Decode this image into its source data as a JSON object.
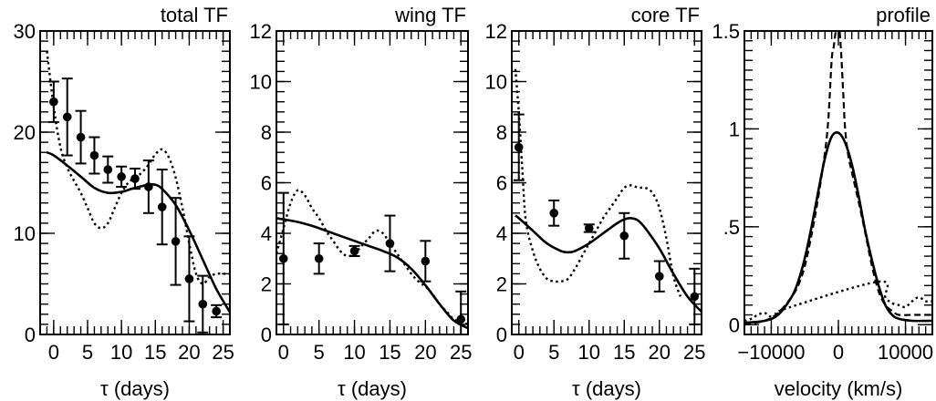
{
  "chart_data": [
    {
      "type": "line",
      "title": "total TF",
      "xlabel": "τ (days)",
      "ylabel": "",
      "xlim": [
        -2,
        26
      ],
      "ylim": [
        0,
        30
      ],
      "xticks": [
        0,
        5,
        10,
        15,
        20,
        25
      ],
      "yticks": [
        0,
        10,
        20,
        30
      ],
      "ytick_labels": [
        "0",
        "10",
        "20",
        "30"
      ],
      "points": [
        {
          "x": 0,
          "y": 23,
          "err": 2
        },
        {
          "x": 2,
          "y": 21.5,
          "err": 3.8
        },
        {
          "x": 4,
          "y": 19.5,
          "err": 2.6
        },
        {
          "x": 6,
          "y": 17.7,
          "err": 1.8
        },
        {
          "x": 8,
          "y": 16.3,
          "err": 1.3
        },
        {
          "x": 10,
          "y": 15.6,
          "err": 1
        },
        {
          "x": 12,
          "y": 15.4,
          "err": 1
        },
        {
          "x": 14,
          "y": 14.6,
          "err": 2.6
        },
        {
          "x": 16,
          "y": 12.6,
          "err": 3.7
        },
        {
          "x": 18,
          "y": 9.2,
          "err": 4.3
        },
        {
          "x": 20,
          "y": 5.5,
          "err": 4.2
        },
        {
          "x": 22,
          "y": 3,
          "err": 2.8
        },
        {
          "x": 24,
          "y": 2.3,
          "err": 0.6
        }
      ],
      "series": [
        {
          "style": "solid",
          "x": [
            -1,
            0,
            2,
            4,
            6,
            8,
            10,
            12,
            14,
            15,
            16,
            18,
            20,
            22,
            24,
            26
          ],
          "y": [
            18,
            17.7,
            16.7,
            15.6,
            14.5,
            14,
            14.1,
            14.5,
            14.8,
            14.8,
            14.4,
            12.8,
            10.3,
            7.4,
            4.5,
            2.2
          ]
        },
        {
          "style": "dotted",
          "x": [
            -1,
            0,
            1,
            2,
            3,
            4,
            5,
            6,
            7,
            8,
            9,
            10,
            11,
            12,
            13,
            14,
            15,
            16,
            17,
            18,
            19,
            20,
            21,
            22,
            23,
            24,
            25,
            26
          ],
          "y": [
            28,
            22.5,
            18.5,
            16.5,
            15.2,
            14,
            12.5,
            11,
            10.5,
            11,
            12.5,
            14,
            15,
            15.5,
            16,
            16.8,
            17.8,
            18.3,
            17.5,
            15.5,
            12.5,
            9,
            6,
            5,
            5.7,
            6,
            6,
            6
          ]
        }
      ]
    },
    {
      "type": "line",
      "title": "wing TF",
      "xlabel": "τ (days)",
      "ylabel": "",
      "xlim": [
        -1,
        26
      ],
      "ylim": [
        0,
        12
      ],
      "xticks": [
        0,
        5,
        10,
        15,
        20,
        25
      ],
      "yticks": [
        0,
        2,
        4,
        6,
        8,
        10,
        12
      ],
      "ytick_labels": [
        "0",
        "2",
        "4",
        "6",
        "8",
        "10",
        "12"
      ],
      "points": [
        {
          "x": 0,
          "y": 3,
          "err": 2.6
        },
        {
          "x": 5,
          "y": 3,
          "err": 0.6
        },
        {
          "x": 10,
          "y": 3.3,
          "err": 0.2
        },
        {
          "x": 15,
          "y": 3.6,
          "err": 1.1
        },
        {
          "x": 20,
          "y": 2.9,
          "err": 0.8
        },
        {
          "x": 25,
          "y": 0.6,
          "err": 1.1
        }
      ],
      "series": [
        {
          "style": "solid",
          "x": [
            -1,
            0,
            2,
            4,
            6,
            8,
            10,
            12,
            14,
            16,
            18,
            20,
            22,
            24,
            26
          ],
          "y": [
            4.6,
            4.55,
            4.45,
            4.3,
            4.1,
            3.9,
            3.7,
            3.5,
            3.3,
            3.05,
            2.6,
            1.95,
            1.2,
            0.55,
            0.25
          ]
        },
        {
          "style": "dotted",
          "x": [
            -1,
            0,
            1,
            2,
            3,
            4,
            5,
            6,
            7,
            8,
            9,
            10,
            11,
            12,
            13,
            14,
            15,
            16,
            17,
            18,
            19,
            20,
            21,
            22,
            23,
            24,
            25,
            26
          ],
          "y": [
            3.2,
            4.2,
            5.2,
            5.7,
            5.5,
            5,
            4.6,
            4.1,
            3.7,
            3.3,
            3.1,
            3.2,
            3.5,
            3.8,
            4.1,
            4,
            3.6,
            3.2,
            2.8,
            2.4,
            2.1,
            1.9,
            1.6,
            1.2,
            0.9,
            0.6,
            0.5,
            0.4
          ]
        }
      ]
    },
    {
      "type": "line",
      "title": "core TF",
      "xlabel": "τ (days)",
      "ylabel": "",
      "xlim": [
        -1,
        26
      ],
      "ylim": [
        0,
        12
      ],
      "xticks": [
        0,
        5,
        10,
        15,
        20,
        25
      ],
      "yticks": [
        0,
        2,
        4,
        6,
        8,
        10,
        12
      ],
      "ytick_labels": [
        "0",
        "2",
        "4",
        "6",
        "8",
        "10",
        "12"
      ],
      "points": [
        {
          "x": 0,
          "y": 7.4,
          "err": 1.3
        },
        {
          "x": 5,
          "y": 4.8,
          "err": 0.5
        },
        {
          "x": 10,
          "y": 4.2,
          "err": 0.15
        },
        {
          "x": 15,
          "y": 3.9,
          "err": 0.9
        },
        {
          "x": 20,
          "y": 2.3,
          "err": 0.6
        },
        {
          "x": 25,
          "y": 1.5,
          "err": 1.1
        }
      ],
      "series": [
        {
          "style": "solid",
          "x": [
            -0.5,
            0,
            2,
            4,
            6,
            7,
            8,
            10,
            12,
            14,
            15,
            16,
            17,
            18,
            20,
            22,
            24,
            26
          ],
          "y": [
            4.7,
            4.6,
            4.1,
            3.6,
            3.3,
            3.25,
            3.3,
            3.6,
            4,
            4.4,
            4.55,
            4.6,
            4.5,
            4.2,
            3.4,
            2.4,
            1.5,
            0.9
          ]
        },
        {
          "style": "dotted",
          "x": [
            -0.5,
            0,
            0.5,
            1,
            2,
            3,
            4,
            5,
            6,
            7,
            8,
            9,
            10,
            11,
            12,
            13,
            14,
            15,
            16,
            17,
            18,
            19,
            20,
            21,
            22,
            23
          ],
          "y": [
            10.5,
            8.8,
            6.5,
            4.5,
            3.3,
            2.6,
            2.2,
            2.1,
            2.1,
            2.2,
            2.6,
            3.1,
            3.6,
            4.1,
            4.6,
            5,
            5.4,
            5.8,
            5.9,
            5.8,
            5.8,
            5.6,
            5,
            3.8,
            2.3,
            1.5
          ]
        }
      ]
    },
    {
      "type": "line",
      "title": "profile",
      "xlabel": "velocity (km/s)",
      "ylabel": "",
      "xlim": [
        -14000,
        14000
      ],
      "ylim": [
        -0.05,
        1.5
      ],
      "xticks": [
        -10000,
        0,
        10000
      ],
      "xtick_labels": [
        "−10000",
        "0",
        "10000"
      ],
      "yticks": [
        0,
        0.5,
        1,
        1.5
      ],
      "ytick_labels": [
        "0",
        ".5",
        "1",
        "1.5"
      ],
      "series": [
        {
          "style": "solid",
          "x": [
            -14000,
            -11000,
            -9000,
            -7000,
            -6000,
            -5000,
            -4000,
            -3000,
            -2000,
            -1000,
            0,
            1000,
            2000,
            3000,
            4000,
            5000,
            6000,
            7000,
            8000,
            9000,
            11000,
            14000
          ],
          "y": [
            0.01,
            0.02,
            0.05,
            0.14,
            0.22,
            0.34,
            0.5,
            0.68,
            0.85,
            0.96,
            0.98,
            0.93,
            0.82,
            0.66,
            0.48,
            0.33,
            0.2,
            0.1,
            0.05,
            0.03,
            0.02,
            0.02
          ]
        },
        {
          "style": "dashed",
          "x": [
            -14000,
            -11000,
            -9000,
            -7000,
            -6000,
            -5000,
            -4000,
            -3000,
            -2000,
            -1500,
            -1000,
            -700,
            -300,
            0,
            300,
            700,
            1000,
            1500,
            2000,
            3000,
            4000,
            5000,
            6000,
            7000,
            8000,
            9000,
            11000,
            14000
          ],
          "y": [
            0.0,
            0.02,
            0.06,
            0.14,
            0.2,
            0.3,
            0.46,
            0.65,
            0.88,
            1.05,
            1.35,
            1.42,
            1.52,
            1.55,
            1.45,
            1.2,
            1.0,
            0.86,
            0.78,
            0.63,
            0.47,
            0.3,
            0.17,
            0.1,
            0.07,
            0.05,
            0.05,
            0.05
          ]
        },
        {
          "style": "dotted",
          "x": [
            -14000,
            -13000,
            -12000,
            -11000,
            -10000,
            -9000,
            -8000,
            6000,
            7000,
            8000,
            9000,
            10000,
            11000,
            12000,
            13000,
            14000
          ],
          "y": [
            0.02,
            0.03,
            0.05,
            0.06,
            0.04,
            0.05,
            0.08,
            0.22,
            0.14,
            0.11,
            0.1,
            0.09,
            0.12,
            0.14,
            0.12,
            0.12
          ]
        }
      ]
    }
  ]
}
